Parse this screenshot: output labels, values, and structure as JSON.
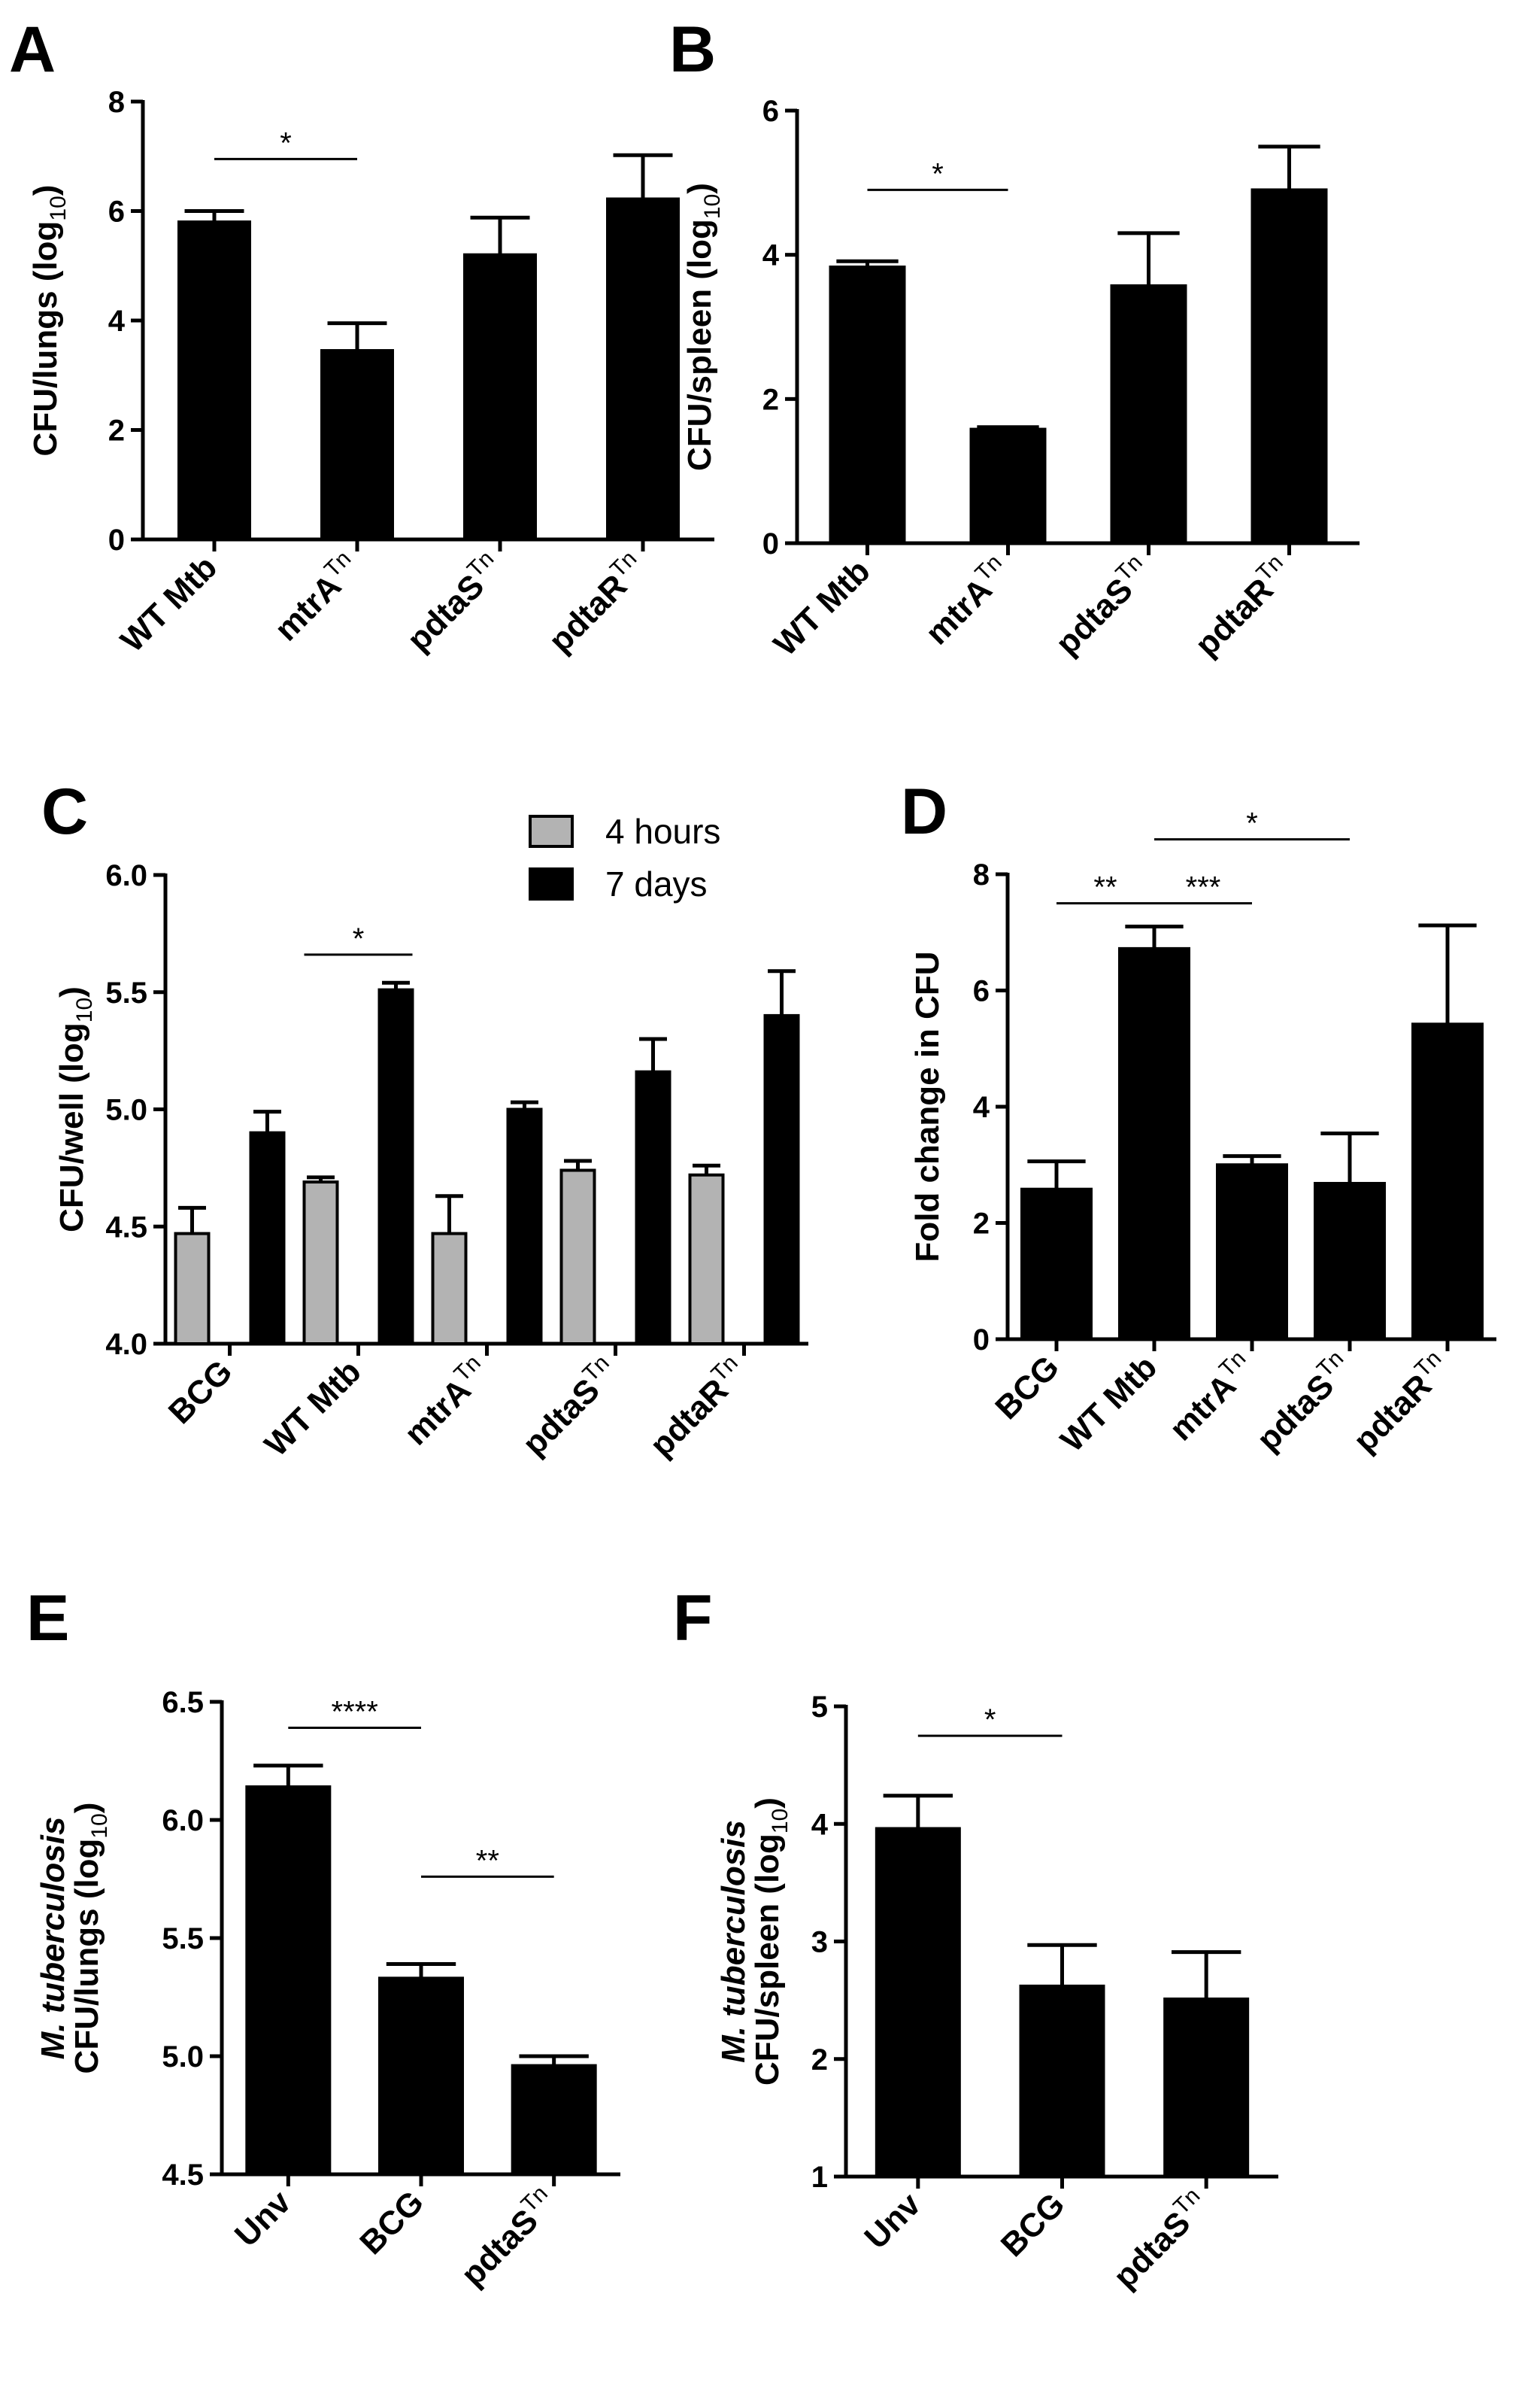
{
  "chart_data": [
    {
      "id": "A",
      "panel_label": "A",
      "type": "bar",
      "ylabel": "CFU/lungs (log",
      "ylabel_sub": "10",
      "ylabel_close": ")",
      "ylim": [
        0,
        8
      ],
      "yticks": [
        "0",
        "2",
        "4",
        "6",
        "8"
      ],
      "categories": [
        {
          "name": "WT Mtb",
          "sup": ""
        },
        {
          "name": "mtrA",
          "sup": "Tn"
        },
        {
          "name": "pdtaS",
          "sup": "Tn"
        },
        {
          "name": "pdtaR",
          "sup": "Tn"
        }
      ],
      "series": [
        {
          "name": "CFU/lungs",
          "color": "#000000",
          "values": [
            5.8,
            3.45,
            5.2,
            6.22
          ],
          "errors": [
            0.2,
            0.5,
            0.68,
            0.8
          ]
        }
      ],
      "significance": [
        {
          "from": 0,
          "to": 1,
          "label": "*",
          "y": 6.95
        }
      ]
    },
    {
      "id": "B",
      "panel_label": "B",
      "type": "bar",
      "ylabel": "CFU/spleen (log",
      "ylabel_sub": "10",
      "ylabel_close": ")",
      "ylim": [
        0,
        6
      ],
      "yticks": [
        "0",
        "2",
        "4",
        "6"
      ],
      "categories": [
        {
          "name": "WT Mtb",
          "sup": ""
        },
        {
          "name": "mtrA",
          "sup": "Tn"
        },
        {
          "name": "pdtaS",
          "sup": "Tn"
        },
        {
          "name": "pdtaR",
          "sup": "Tn"
        }
      ],
      "series": [
        {
          "name": "CFU/spleen",
          "color": "#000000",
          "values": [
            3.83,
            1.58,
            3.57,
            4.9
          ],
          "errors": [
            0.08,
            0.03,
            0.73,
            0.6
          ]
        }
      ],
      "significance": [
        {
          "from": 0,
          "to": 1,
          "label": "*",
          "y": 4.9
        }
      ]
    },
    {
      "id": "C",
      "panel_label": "C",
      "type": "bar",
      "ylabel": "CFU/well (log",
      "ylabel_sub": "10",
      "ylabel_close": ")",
      "ylim": [
        4.0,
        6.0
      ],
      "yticks": [
        "4.0",
        "4.5",
        "5.0",
        "5.5",
        "6.0"
      ],
      "categories": [
        {
          "name": "BCG",
          "sup": ""
        },
        {
          "name": "WT Mtb",
          "sup": ""
        },
        {
          "name": "mtrA",
          "sup": "Tn"
        },
        {
          "name": "pdtaS",
          "sup": "Tn"
        },
        {
          "name": "pdtaR",
          "sup": "Tn"
        }
      ],
      "series": [
        {
          "name": "4 hours",
          "color": "#b3b3b3",
          "values": [
            4.47,
            4.69,
            4.47,
            4.74,
            4.72
          ],
          "errors": [
            0.11,
            0.02,
            0.16,
            0.04,
            0.04
          ]
        },
        {
          "name": "7 days",
          "color": "#000000",
          "values": [
            4.9,
            5.51,
            5.0,
            5.16,
            5.4
          ],
          "errors": [
            0.09,
            0.03,
            0.03,
            0.14,
            0.19
          ]
        }
      ],
      "legend": "top-center",
      "significance": [
        {
          "label": "*",
          "from_cat": 1,
          "from_series": 0,
          "to_cat": 1,
          "to_series": 1,
          "y": 5.66
        }
      ]
    },
    {
      "id": "D",
      "panel_label": "D",
      "type": "bar",
      "ylabel": "Fold change in CFU",
      "ylabel_sub": "",
      "ylabel_close": "",
      "ylim": [
        0,
        8
      ],
      "yticks": [
        "0",
        "2",
        "4",
        "6",
        "8"
      ],
      "categories": [
        {
          "name": "BCG",
          "sup": ""
        },
        {
          "name": "WT Mtb",
          "sup": ""
        },
        {
          "name": "mtrA",
          "sup": "Tn"
        },
        {
          "name": "pdtaS",
          "sup": "Tn"
        },
        {
          "name": "pdtaR",
          "sup": "Tn"
        }
      ],
      "series": [
        {
          "name": "Fold change",
          "color": "#000000",
          "values": [
            2.58,
            6.72,
            3.0,
            2.68,
            5.42
          ],
          "errors": [
            0.48,
            0.38,
            0.15,
            0.86,
            1.7
          ]
        }
      ],
      "significance": [
        {
          "from": 0,
          "to": 1,
          "label": "**",
          "y": 7.5
        },
        {
          "from": 1,
          "to": 2,
          "label": "***",
          "y": 7.5
        },
        {
          "from": 1,
          "to": 3,
          "label": "*",
          "y": 8.6
        }
      ]
    },
    {
      "id": "E",
      "panel_label": "E",
      "type": "bar",
      "ylabel_italic": "M. tuberculosis",
      "ylabel": "CFU/lungs (log",
      "ylabel_sub": "10",
      "ylabel_close": ")",
      "ylim": [
        4.5,
        6.5
      ],
      "yticks": [
        "4.5",
        "5.0",
        "5.5",
        "6.0",
        "6.5"
      ],
      "categories": [
        {
          "name": "Unv",
          "sup": ""
        },
        {
          "name": "BCG",
          "sup": ""
        },
        {
          "name": "pdtaS",
          "sup": "Tn"
        }
      ],
      "series": [
        {
          "name": "CFU/lungs",
          "color": "#000000",
          "values": [
            6.14,
            5.33,
            4.96
          ],
          "errors": [
            0.09,
            0.06,
            0.04
          ]
        }
      ],
      "significance": [
        {
          "from": 0,
          "to": 1,
          "label": "****",
          "y": 6.39
        },
        {
          "from": 1,
          "to": 2,
          "label": "**",
          "y": 5.76
        }
      ]
    },
    {
      "id": "F",
      "panel_label": "F",
      "type": "bar",
      "ylabel_italic": "M. tuberculosis",
      "ylabel": "CFU/spleen (log",
      "ylabel_sub": "10",
      "ylabel_close": ")",
      "ylim": [
        1,
        5
      ],
      "yticks": [
        "1",
        "2",
        "3",
        "4",
        "5"
      ],
      "categories": [
        {
          "name": "Unv",
          "sup": ""
        },
        {
          "name": "BCG",
          "sup": ""
        },
        {
          "name": "pdtaS",
          "sup": "Tn"
        }
      ],
      "series": [
        {
          "name": "CFU/spleen",
          "color": "#000000",
          "values": [
            3.96,
            2.62,
            2.51
          ],
          "errors": [
            0.28,
            0.35,
            0.4
          ]
        }
      ],
      "significance": [
        {
          "from": 0,
          "to": 1,
          "label": "*",
          "y": 4.75
        }
      ]
    }
  ]
}
